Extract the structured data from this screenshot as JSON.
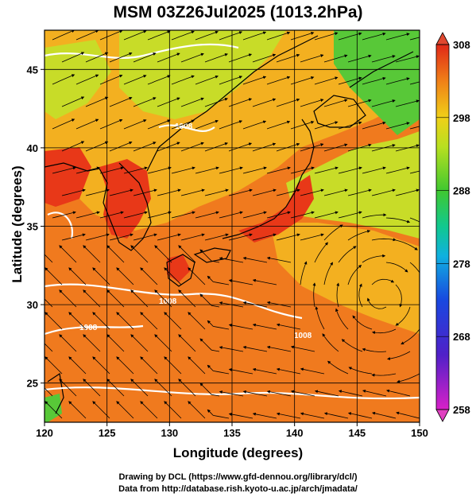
{
  "title": "MSM 03Z26Jul2025 (1013.2hPa)",
  "xlabel": "Longitude (degrees)",
  "ylabel": "Latitude  (degrees)",
  "credits": [
    "Drawing by DCL (https://www.gfd-dennou.org/library/dcl/)",
    "Data from http://database.rish.kyoto-u.ac.jp/arch/jmadata/"
  ],
  "map": {
    "lon_range": [
      120,
      150
    ],
    "lat_range": [
      22.5,
      47.5
    ],
    "x_ticks": [
      "120",
      "125",
      "130",
      "135",
      "140",
      "145",
      "150"
    ],
    "y_ticks": [
      "25",
      "30",
      "35",
      "40",
      "45"
    ],
    "isobar_labels": [
      "1008",
      "1008",
      "1008",
      "1008"
    ],
    "fill_colors": {
      "hot": "#e83818",
      "warm": "#f07a1e",
      "mild": "#f3b020",
      "cool": "#c8dc28",
      "cold": "#58c838"
    }
  },
  "chart_data": {
    "type": "heatmap",
    "variable": "temperature",
    "colorbar": {
      "min": 258,
      "max": 308,
      "tick_labels": [
        "308",
        "298",
        "288",
        "278",
        "268",
        "258"
      ]
    }
  }
}
